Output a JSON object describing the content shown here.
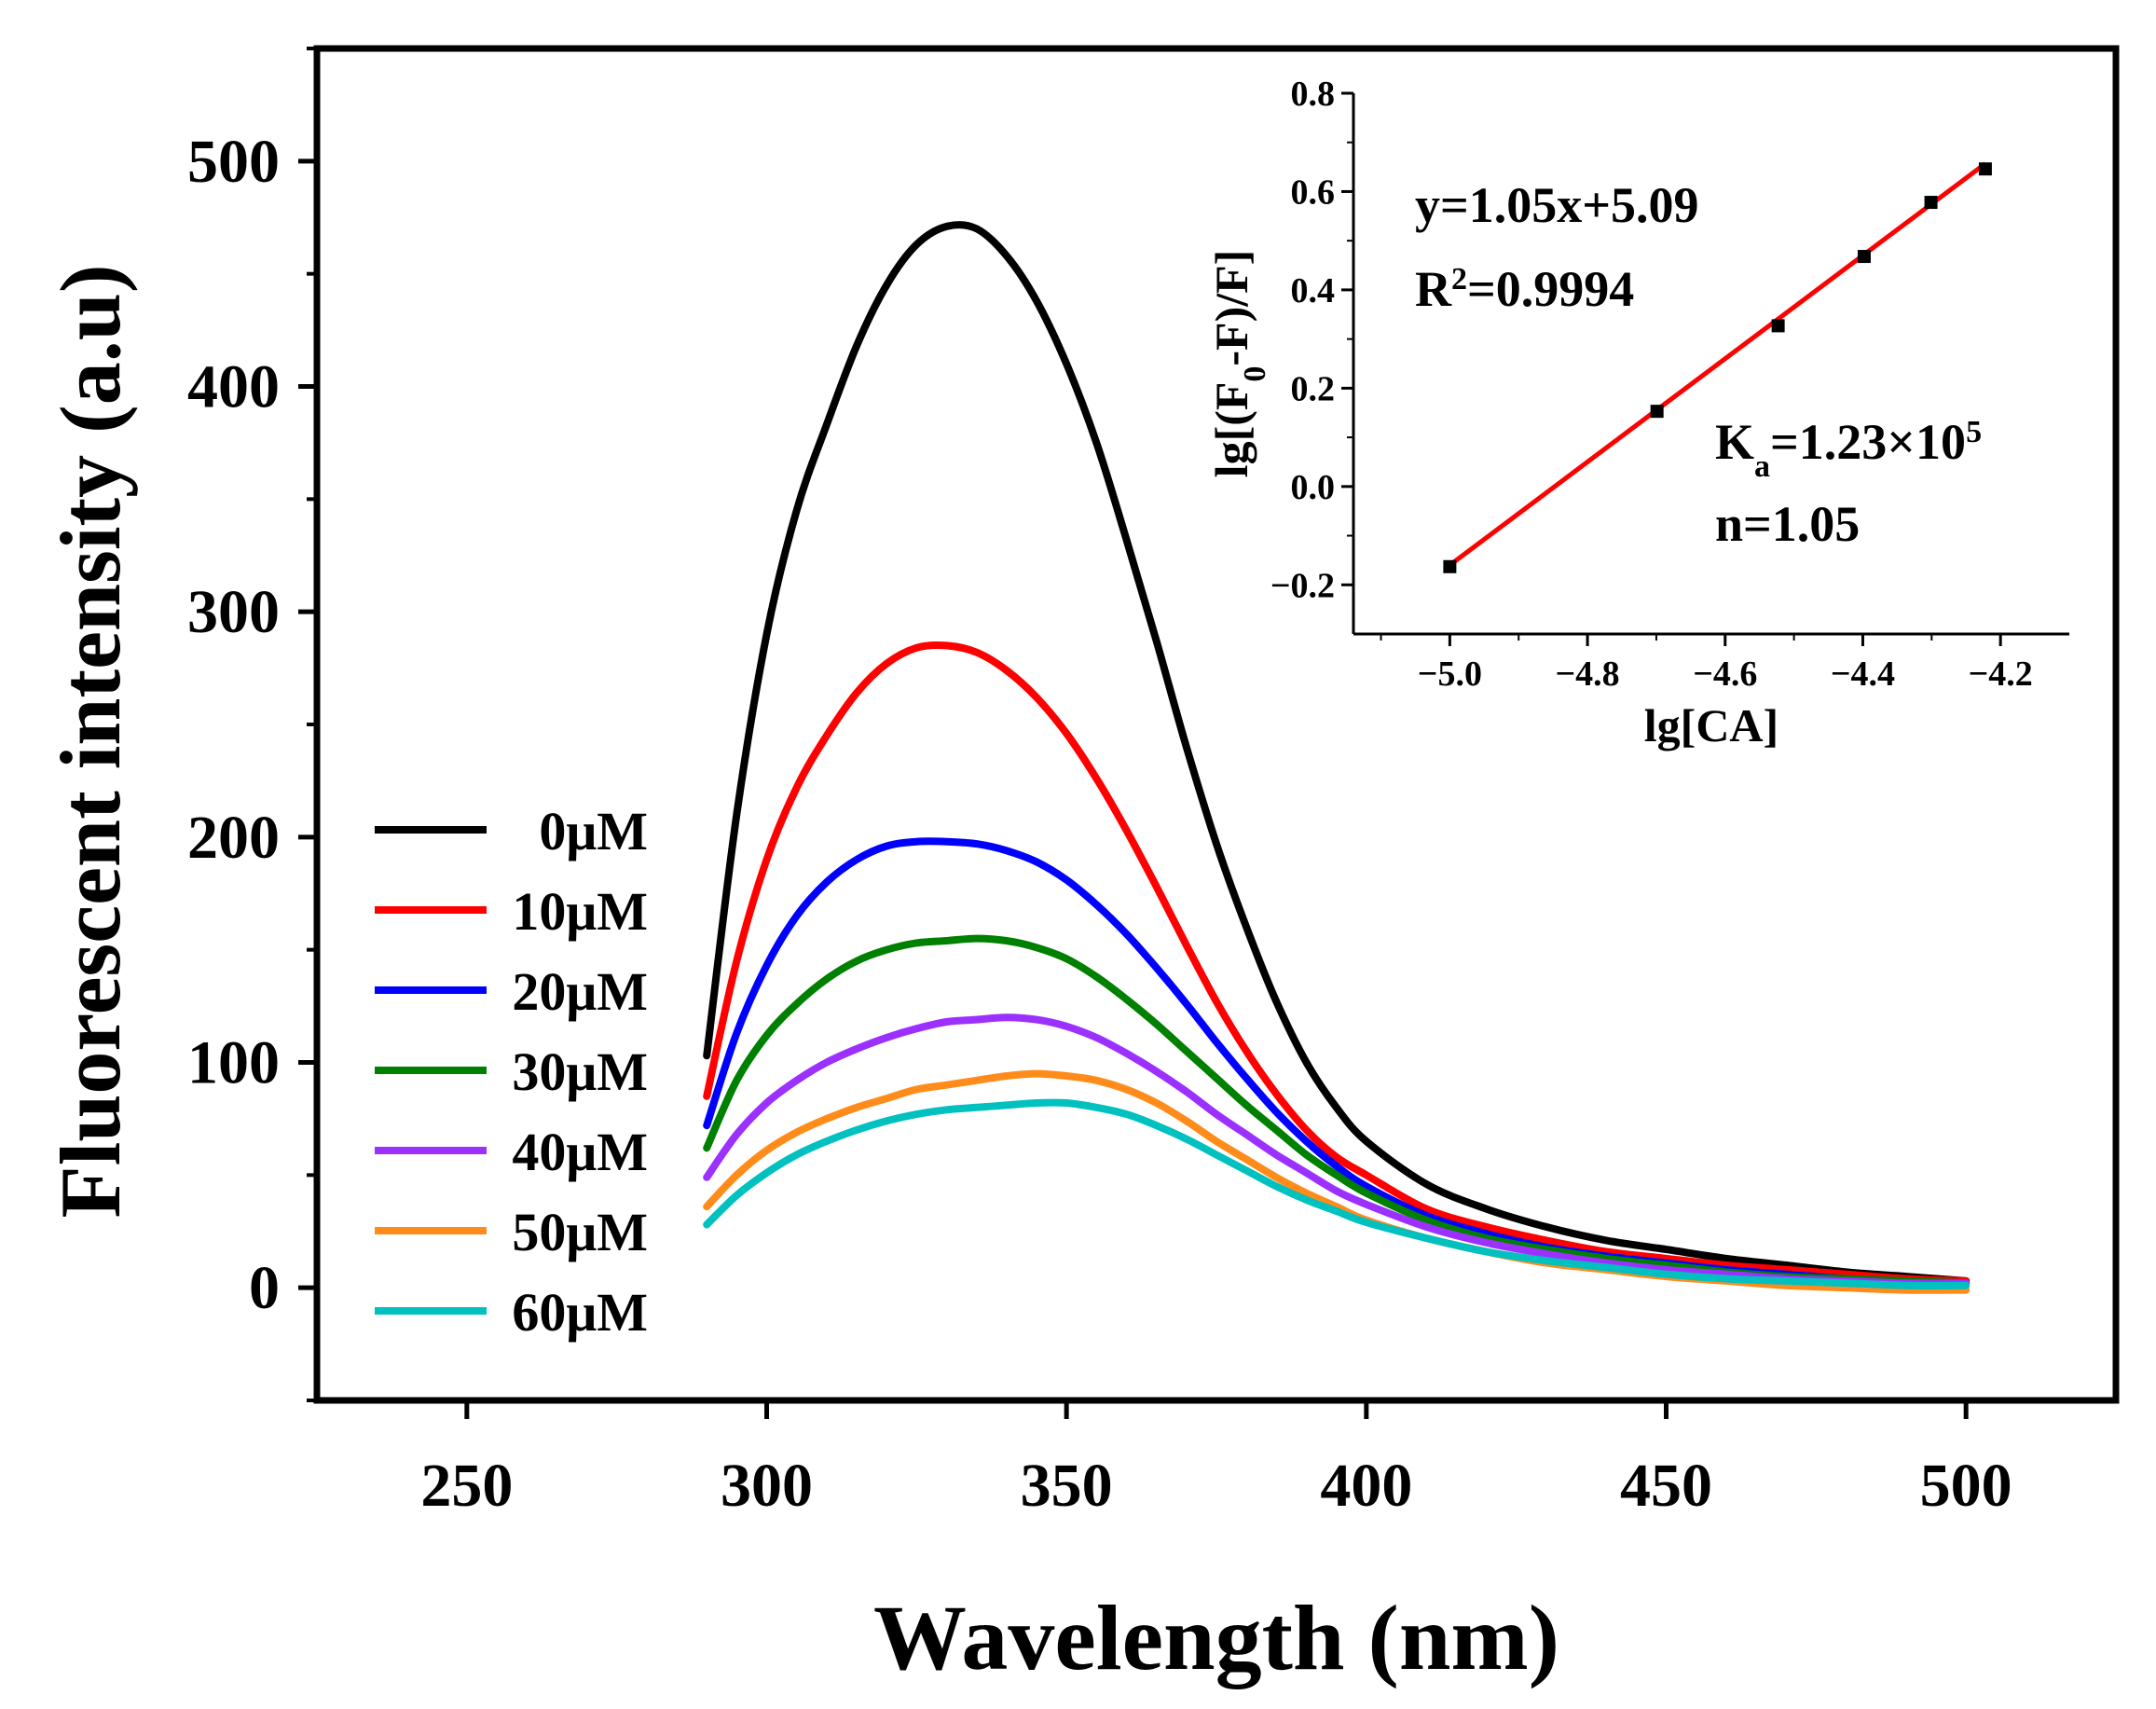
{
  "chart_data": [
    {
      "type": "line",
      "xlabel": "Wavelength (nm)",
      "ylabel": "Fluorescent intensity (a.u)",
      "xlim": [
        225,
        525
      ],
      "ylim": [
        -50,
        550
      ],
      "xticks": [
        250,
        300,
        350,
        400,
        450,
        500
      ],
      "yticks": [
        0,
        100,
        200,
        300,
        400,
        500
      ],
      "xtick_labels": [
        "250",
        "300",
        "350",
        "400",
        "450",
        "500"
      ],
      "ytick_labels": [
        "0",
        "100",
        "200",
        "300",
        "400",
        "500"
      ],
      "legend_position": "left",
      "series": [
        {
          "name": "0μM",
          "color": "#000000",
          "x": [
            290,
            295,
            300,
            305,
            310,
            315,
            320,
            325,
            330,
            335,
            340,
            345,
            350,
            355,
            360,
            365,
            370,
            375,
            380,
            385,
            390,
            395,
            400,
            410,
            420,
            430,
            440,
            450,
            460,
            470,
            480,
            490,
            500
          ],
          "y": [
            103,
            210,
            290,
            345,
            383,
            418,
            445,
            463,
            471,
            470,
            458,
            438,
            410,
            375,
            332,
            287,
            240,
            197,
            160,
            127,
            100,
            80,
            65,
            46,
            35,
            27,
            21,
            17,
            13,
            10,
            7,
            5,
            3
          ]
        },
        {
          "name": "10μM",
          "color": "#ff0000",
          "x": [
            290,
            295,
            300,
            305,
            310,
            315,
            320,
            325,
            330,
            335,
            340,
            345,
            350,
            355,
            360,
            365,
            370,
            375,
            380,
            385,
            390,
            395,
            400,
            410,
            420,
            430,
            440,
            450,
            460,
            470,
            480,
            490,
            500
          ],
          "y": [
            85,
            145,
            190,
            222,
            245,
            264,
            277,
            284,
            285,
            282,
            274,
            262,
            246,
            226,
            203,
            178,
            152,
            127,
            105,
            86,
            70,
            58,
            50,
            35,
            27,
            21,
            16,
            13,
            10,
            8,
            6,
            4,
            3
          ]
        },
        {
          "name": "20μM",
          "color": "#0000ff",
          "x": [
            290,
            295,
            300,
            305,
            310,
            315,
            320,
            325,
            330,
            335,
            340,
            345,
            350,
            355,
            360,
            365,
            370,
            375,
            380,
            385,
            390,
            395,
            400,
            410,
            420,
            430,
            440,
            450,
            460,
            470,
            480,
            490,
            500
          ],
          "y": [
            72,
            113,
            143,
            165,
            180,
            190,
            196,
            198,
            198,
            197,
            194,
            189,
            181,
            170,
            157,
            142,
            126,
            109,
            93,
            78,
            65,
            54,
            45,
            32,
            24,
            18,
            14,
            11,
            8,
            6,
            4,
            3,
            2
          ]
        },
        {
          "name": "30μM",
          "color": "#008000",
          "x": [
            290,
            295,
            300,
            305,
            310,
            315,
            320,
            325,
            330,
            335,
            340,
            345,
            350,
            355,
            360,
            365,
            370,
            375,
            380,
            385,
            390,
            395,
            400,
            410,
            420,
            430,
            440,
            450,
            460,
            470,
            480,
            490,
            500
          ],
          "y": [
            62,
            92,
            112,
            126,
            137,
            145,
            150,
            153,
            154,
            155,
            154,
            151,
            146,
            138,
            128,
            117,
            105,
            93,
            81,
            70,
            59,
            50,
            42,
            30,
            22,
            17,
            13,
            10,
            7,
            5,
            4,
            3,
            2
          ]
        },
        {
          "name": "40μM",
          "color": "#9b30ff",
          "x": [
            290,
            295,
            300,
            305,
            310,
            315,
            320,
            325,
            330,
            335,
            340,
            345,
            350,
            355,
            360,
            365,
            370,
            375,
            380,
            385,
            390,
            395,
            400,
            410,
            420,
            430,
            440,
            450,
            460,
            470,
            480,
            490,
            500
          ],
          "y": [
            49,
            68,
            82,
            92,
            100,
            106,
            111,
            115,
            118,
            119,
            120,
            119,
            116,
            111,
            104,
            96,
            87,
            77,
            68,
            59,
            51,
            43,
            37,
            27,
            20,
            15,
            11,
            8,
            6,
            4,
            3,
            2,
            2
          ]
        },
        {
          "name": "50μM",
          "color": "#ff8c1a",
          "x": [
            290,
            295,
            300,
            305,
            310,
            315,
            320,
            325,
            330,
            335,
            340,
            345,
            350,
            355,
            360,
            365,
            370,
            375,
            380,
            385,
            390,
            395,
            400,
            410,
            420,
            430,
            440,
            450,
            460,
            470,
            480,
            490,
            500
          ],
          "y": [
            36,
            50,
            61,
            69,
            75,
            80,
            84,
            88,
            90,
            92,
            94,
            95,
            94,
            92,
            88,
            82,
            74,
            65,
            57,
            49,
            42,
            36,
            30,
            22,
            16,
            11,
            8,
            5,
            3,
            1,
            0,
            -1,
            -1
          ]
        },
        {
          "name": "60μM",
          "color": "#00c0c0",
          "x": [
            290,
            295,
            300,
            305,
            310,
            315,
            320,
            325,
            330,
            335,
            340,
            345,
            350,
            355,
            360,
            365,
            370,
            375,
            380,
            385,
            390,
            395,
            400,
            410,
            420,
            430,
            440,
            450,
            460,
            470,
            480,
            490,
            500
          ],
          "y": [
            28,
            41,
            51,
            59,
            65,
            70,
            74,
            77,
            79,
            80,
            81,
            82,
            82,
            80,
            77,
            72,
            66,
            59,
            52,
            45,
            39,
            34,
            29,
            22,
            16,
            12,
            9,
            6,
            4,
            3,
            2,
            1,
            1
          ]
        }
      ]
    },
    {
      "type": "scatter",
      "xlabel": "lg[CA]",
      "ylabel": "lg[(F0-F)/F]",
      "xlim": [
        -5.14,
        -4.1
      ],
      "ylim": [
        -0.3,
        0.8
      ],
      "xticks": [
        -5.0,
        -4.8,
        -4.6,
        -4.4,
        -4.2
      ],
      "yticks": [
        -0.2,
        0.0,
        0.2,
        0.4,
        0.6,
        0.8
      ],
      "xtick_labels": [
        "−5.0",
        "−4.8",
        "−4.6",
        "−4.4",
        "−4.2"
      ],
      "ytick_labels": [
        "−0.2",
        "0.0",
        "0.2",
        "0.4",
        "0.6",
        "0.8"
      ],
      "points": {
        "x": [
          -5.0,
          -4.699,
          -4.523,
          -4.398,
          -4.301,
          -4.222
        ],
        "y": [
          -0.163,
          0.153,
          0.327,
          0.468,
          0.578,
          0.646
        ]
      },
      "fit": {
        "slope": 1.05,
        "intercept": 5.09,
        "color": "#ff0000",
        "x_range": [
          -5.0,
          -4.222
        ]
      },
      "annotations": {
        "equation": "y=1.05x+5.09",
        "r2_prefix": "R",
        "r2_sup": "2",
        "r2_value": "=0.9994",
        "ka_prefix": "K",
        "ka_sub": "a",
        "ka_value": "=1.23×10",
        "ka_sup": "5",
        "n": "n=1.05"
      }
    }
  ]
}
